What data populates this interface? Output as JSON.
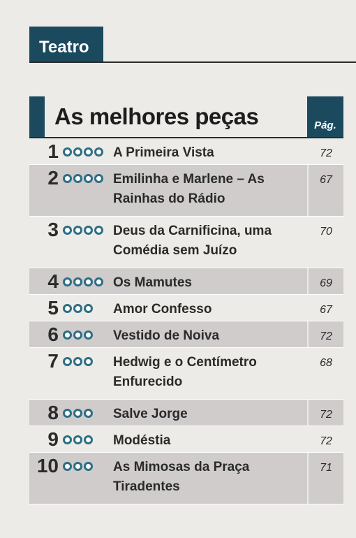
{
  "section": {
    "label": "Teatro"
  },
  "list": {
    "title": "As melhores peças",
    "page_header": "Pág.",
    "items": [
      {
        "rank": "1",
        "stars": 4,
        "title": "A Primeira Vista",
        "page": "72"
      },
      {
        "rank": "2",
        "stars": 4,
        "title": "Emilinha e Marlene – As Rainhas do Rádio",
        "page": "67"
      },
      {
        "rank": "3",
        "stars": 4,
        "title": "Deus da Carnificina, uma Comédia sem Juízo",
        "page": "70"
      },
      {
        "rank": "4",
        "stars": 4,
        "title": "Os Mamutes",
        "page": "69"
      },
      {
        "rank": "5",
        "stars": 3,
        "title": "Amor Confesso",
        "page": "67"
      },
      {
        "rank": "6",
        "stars": 3,
        "title": "Vestido de Noiva",
        "page": "72"
      },
      {
        "rank": "7",
        "stars": 3,
        "title": "Hedwig e o Centímetro Enfurecido",
        "page": "68"
      },
      {
        "rank": "8",
        "stars": 3,
        "title": "Salve Jorge",
        "page": "72"
      },
      {
        "rank": "9",
        "stars": 3,
        "title": "Modéstia",
        "page": "72"
      },
      {
        "rank": "10",
        "stars": 3,
        "title": "As Mimosas da Praça Tiradentes",
        "page": "71"
      }
    ]
  },
  "colors": {
    "accent": "#1b4a5f",
    "star": "#2d6e86",
    "shade": "#cfcccb"
  }
}
